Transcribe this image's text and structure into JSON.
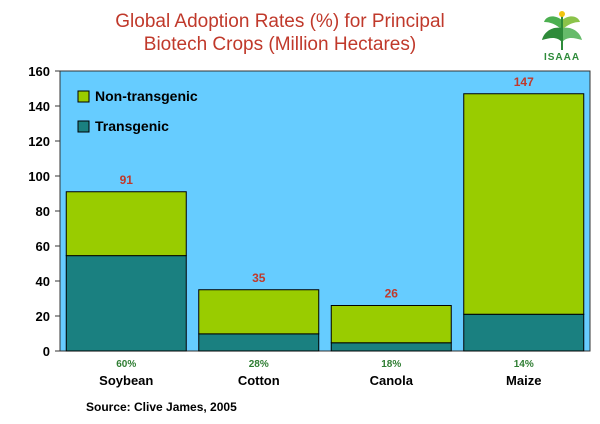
{
  "chart_data": {
    "type": "bar",
    "stacked": true,
    "title": "Global Adoption Rates (%) for Principal Biotech Crops (Million Hectares)",
    "title_lines": [
      "Global Adoption Rates (%) for Principal",
      "Biotech Crops (Million Hectares)"
    ],
    "categories": [
      "Soybean",
      "Cotton",
      "Canola",
      "Maize"
    ],
    "series": [
      {
        "name": "Transgenic",
        "color": "#1a8080",
        "values": [
          54.5,
          9.8,
          4.7,
          21
        ]
      },
      {
        "name": "Non-transgenic",
        "color": "#99cc00",
        "values": [
          36.5,
          25.2,
          21.3,
          126
        ]
      }
    ],
    "totals": [
      "91",
      "35",
      "26",
      "147"
    ],
    "adoption_labels": [
      "60%",
      "28%",
      "18%",
      "14%"
    ],
    "ylim": [
      0,
      160
    ],
    "yticks": [
      "0",
      "20",
      "40",
      "60",
      "80",
      "100",
      "120",
      "140",
      "160"
    ],
    "legend_order": [
      "Non-transgenic",
      "Transgenic"
    ],
    "legend_position": "top-left",
    "plot_background": "#66ccff",
    "total_label_color": "#c0392b",
    "adoption_label_color": "#2e7d32"
  },
  "logo": {
    "text": "ISAAA"
  },
  "source": "Source: Clive James, 2005"
}
